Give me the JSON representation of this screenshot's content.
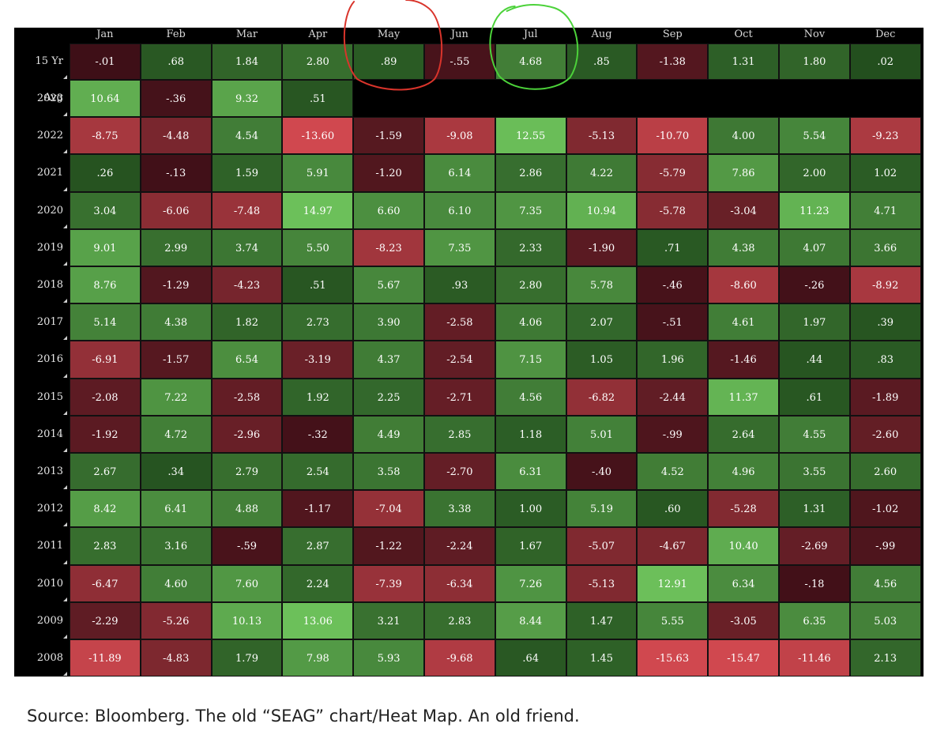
{
  "chart_data": {
    "type": "heatmap",
    "title": "",
    "columns": [
      "Jan",
      "Feb",
      "Mar",
      "Apr",
      "May",
      "Jun",
      "Jul",
      "Aug",
      "Sep",
      "Oct",
      "Nov",
      "Dec"
    ],
    "rows": [
      {
        "label": "15 Yr Avg",
        "values": [
          "-.01",
          ".68",
          "1.84",
          "2.80",
          ".89",
          "-.55",
          "4.68",
          ".85",
          "-1.38",
          "1.31",
          "1.80",
          ".02"
        ]
      },
      {
        "label": "2023",
        "values": [
          "10.64",
          "-.36",
          "9.32",
          ".51",
          null,
          null,
          null,
          null,
          null,
          null,
          null,
          null
        ]
      },
      {
        "label": "2022",
        "values": [
          "-8.75",
          "-4.48",
          "4.54",
          "-13.60",
          "-1.59",
          "-9.08",
          "12.55",
          "-5.13",
          "-10.70",
          "4.00",
          "5.54",
          "-9.23"
        ]
      },
      {
        "label": "2021",
        "values": [
          ".26",
          "-.13",
          "1.59",
          "5.91",
          "-1.20",
          "6.14",
          "2.86",
          "4.22",
          "-5.79",
          "7.86",
          "2.00",
          "1.02"
        ]
      },
      {
        "label": "2020",
        "values": [
          "3.04",
          "-6.06",
          "-7.48",
          "14.97",
          "6.60",
          "6.10",
          "7.35",
          "10.94",
          "-5.78",
          "-3.04",
          "11.23",
          "4.71"
        ]
      },
      {
        "label": "2019",
        "values": [
          "9.01",
          "2.99",
          "3.74",
          "5.50",
          "-8.23",
          "7.35",
          "2.33",
          "-1.90",
          ".71",
          "4.38",
          "4.07",
          "3.66"
        ]
      },
      {
        "label": "2018",
        "values": [
          "8.76",
          "-1.29",
          "-4.23",
          ".51",
          "5.67",
          ".93",
          "2.80",
          "5.78",
          "-.46",
          "-8.60",
          "-.26",
          "-8.92"
        ]
      },
      {
        "label": "2017",
        "values": [
          "5.14",
          "4.38",
          "1.82",
          "2.73",
          "3.90",
          "-2.58",
          "4.06",
          "2.07",
          "-.51",
          "4.61",
          "1.97",
          ".39"
        ]
      },
      {
        "label": "2016",
        "values": [
          "-6.91",
          "-1.57",
          "6.54",
          "-3.19",
          "4.37",
          "-2.54",
          "7.15",
          "1.05",
          "1.96",
          "-1.46",
          ".44",
          ".83"
        ]
      },
      {
        "label": "2015",
        "values": [
          "-2.08",
          "7.22",
          "-2.58",
          "1.92",
          "2.25",
          "-2.71",
          "4.56",
          "-6.82",
          "-2.44",
          "11.37",
          ".61",
          "-1.89"
        ]
      },
      {
        "label": "2014",
        "values": [
          "-1.92",
          "4.72",
          "-2.96",
          "-.32",
          "4.49",
          "2.85",
          "1.18",
          "5.01",
          "-.99",
          "2.64",
          "4.55",
          "-2.60"
        ]
      },
      {
        "label": "2013",
        "values": [
          "2.67",
          ".34",
          "2.79",
          "2.54",
          "3.58",
          "-2.70",
          "6.31",
          "-.40",
          "4.52",
          "4.96",
          "3.55",
          "2.60"
        ]
      },
      {
        "label": "2012",
        "values": [
          "8.42",
          "6.41",
          "4.88",
          "-1.17",
          "-7.04",
          "3.38",
          "1.00",
          "5.19",
          ".60",
          "-5.28",
          "1.31",
          "-1.02"
        ]
      },
      {
        "label": "2011",
        "values": [
          "2.83",
          "3.16",
          "-.59",
          "2.87",
          "-1.22",
          "-2.24",
          "1.67",
          "-5.07",
          "-4.67",
          "10.40",
          "-2.69",
          "-.99"
        ]
      },
      {
        "label": "2010",
        "values": [
          "-6.47",
          "4.60",
          "7.60",
          "2.24",
          "-7.39",
          "-6.34",
          "7.26",
          "-5.13",
          "12.91",
          "6.34",
          "-.18",
          "4.56"
        ]
      },
      {
        "label": "2009",
        "values": [
          "-2.29",
          "-5.26",
          "10.13",
          "13.06",
          "3.21",
          "2.83",
          "8.44",
          "1.47",
          "5.55",
          "-3.05",
          "6.35",
          "5.03"
        ]
      },
      {
        "label": "2008",
        "values": [
          "-11.89",
          "-4.83",
          "1.79",
          "7.98",
          "5.93",
          "-9.68",
          ".64",
          "1.45",
          "-15.63",
          "-15.47",
          "-11.46",
          "2.13"
        ]
      }
    ],
    "highlighted_columns": [
      {
        "column": "May",
        "color": "#d9342b"
      },
      {
        "column": "Jul",
        "color": "#4cd23a"
      }
    ]
  },
  "colors": {
    "positive_dark": "#234f1e",
    "positive_light": "#6cc05a",
    "negative_dark": "#3e0f17",
    "negative_light": "#d0484f",
    "neutral": "#2b3a22"
  },
  "source_text": "Source: Bloomberg. The old “SEAG” chart/Heat Map. An old friend."
}
